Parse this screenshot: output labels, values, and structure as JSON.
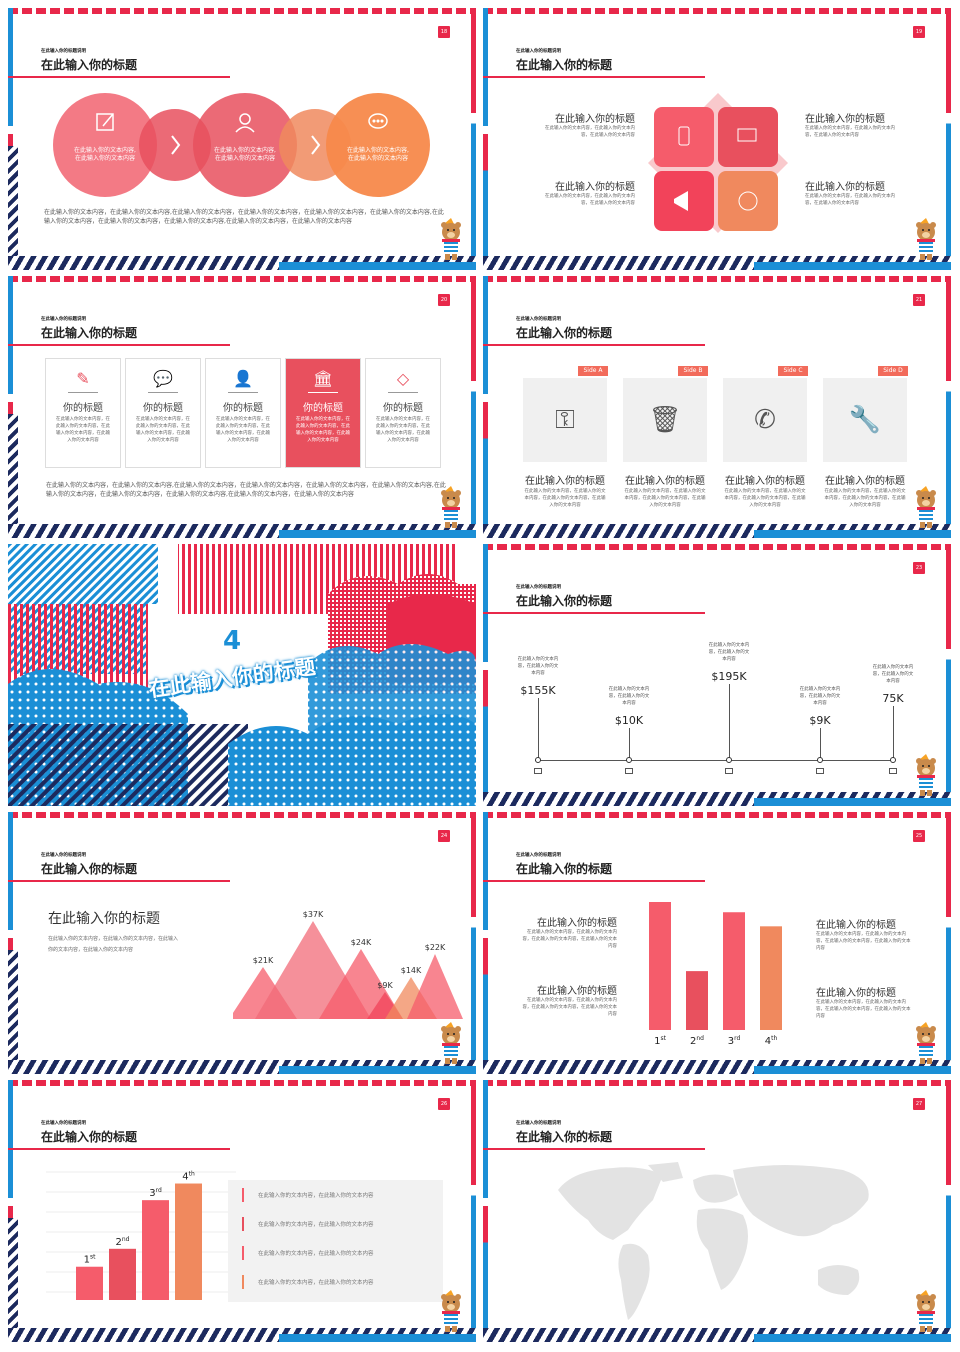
{
  "common": {
    "subtitle": "在此输入你的标题说明",
    "title": "在此输入你的标题",
    "heading": "在此输入你的标题",
    "short_heading": "你的标题",
    "text_long": "在此输入你的文本内容，在此输入你的文本内容,在此输入你的文本内容，在此输入你的文本内容，在此输入你的文本内容，在此输入你的文本内容,在此输入你的文本内容，在此输入你的文本内容，在此输入你的文本内容,在此输入你的文本内容，在此输入你的文本内容",
    "text_short": "在此输入你的文本内容，在此输入你的文本内容",
    "text_block": "在此输入你的文本内容，在此输入你的文本内容，在此输入你的文本内容",
    "text_col": "在此输入你的文本内容，在此输入你的文本内容，在此输入你的文本内容，在此输入你的文本内容"
  },
  "slides": {
    "s18": {
      "num": "18",
      "circle_texts": [
        "在此输入你的文本内容,\n在此输入你的文本内容",
        "在此输入你的文本内容,\n在此输入你的文本内容",
        "在此输入你的文本内容,\n在此输入你的文本内容"
      ],
      "colors": [
        "#f26b78",
        "#e8505e",
        "#f7894b"
      ]
    },
    "s19": {
      "num": "19"
    },
    "s20": {
      "num": "20",
      "highlight_color": "#e8505e"
    },
    "s21": {
      "num": "21",
      "sides": [
        "Side A",
        "Side B",
        "Side C",
        "Side D"
      ],
      "side_color": "#f26b5b"
    },
    "s22": {
      "section_number": "4",
      "section_title": "在此输入你的标题"
    },
    "s23": {
      "num": "23",
      "values": [
        "$155K",
        "$10K",
        "$195K",
        "$9K",
        "75K"
      ],
      "small_text": "在此输入你的文本内容，在此输入你的文本内容"
    },
    "s24": {
      "num": "24",
      "labels": [
        "$21K",
        "$37K",
        "$24K",
        "$9K",
        "$14K",
        "$22K"
      ]
    },
    "s25": {
      "num": "25",
      "bars": [
        {
          "label": "1",
          "sup": "st",
          "value": 100
        },
        {
          "label": "2",
          "sup": "nd",
          "value": 46
        },
        {
          "label": "3",
          "sup": "rd",
          "value": 92
        },
        {
          "label": "4",
          "sup": "th",
          "value": 81
        }
      ],
      "colors": [
        "#f55c6b",
        "#e8505e",
        "#f55c6b",
        "#f0895e"
      ]
    },
    "s26": {
      "num": "26",
      "bars": [
        {
          "label": "1",
          "sup": "st",
          "value": 26
        },
        {
          "label": "2",
          "sup": "nd",
          "value": 40
        },
        {
          "label": "3",
          "sup": "rd",
          "value": 78
        },
        {
          "label": "4",
          "sup": "th",
          "value": 91
        }
      ],
      "colors": [
        "#f55c6b",
        "#e8505e",
        "#f55c6b",
        "#f0895e"
      ],
      "list": [
        "在此输入你的文本内容，在此输入你的文本内容",
        "在此输入你的文本内容，在此输入你的文本内容",
        "在此输入你的文本内容，在此输入你的文本内容",
        "在此输入你的文本内容，在此输入你的文本内容"
      ]
    },
    "s27": {
      "num": "27"
    }
  }
}
